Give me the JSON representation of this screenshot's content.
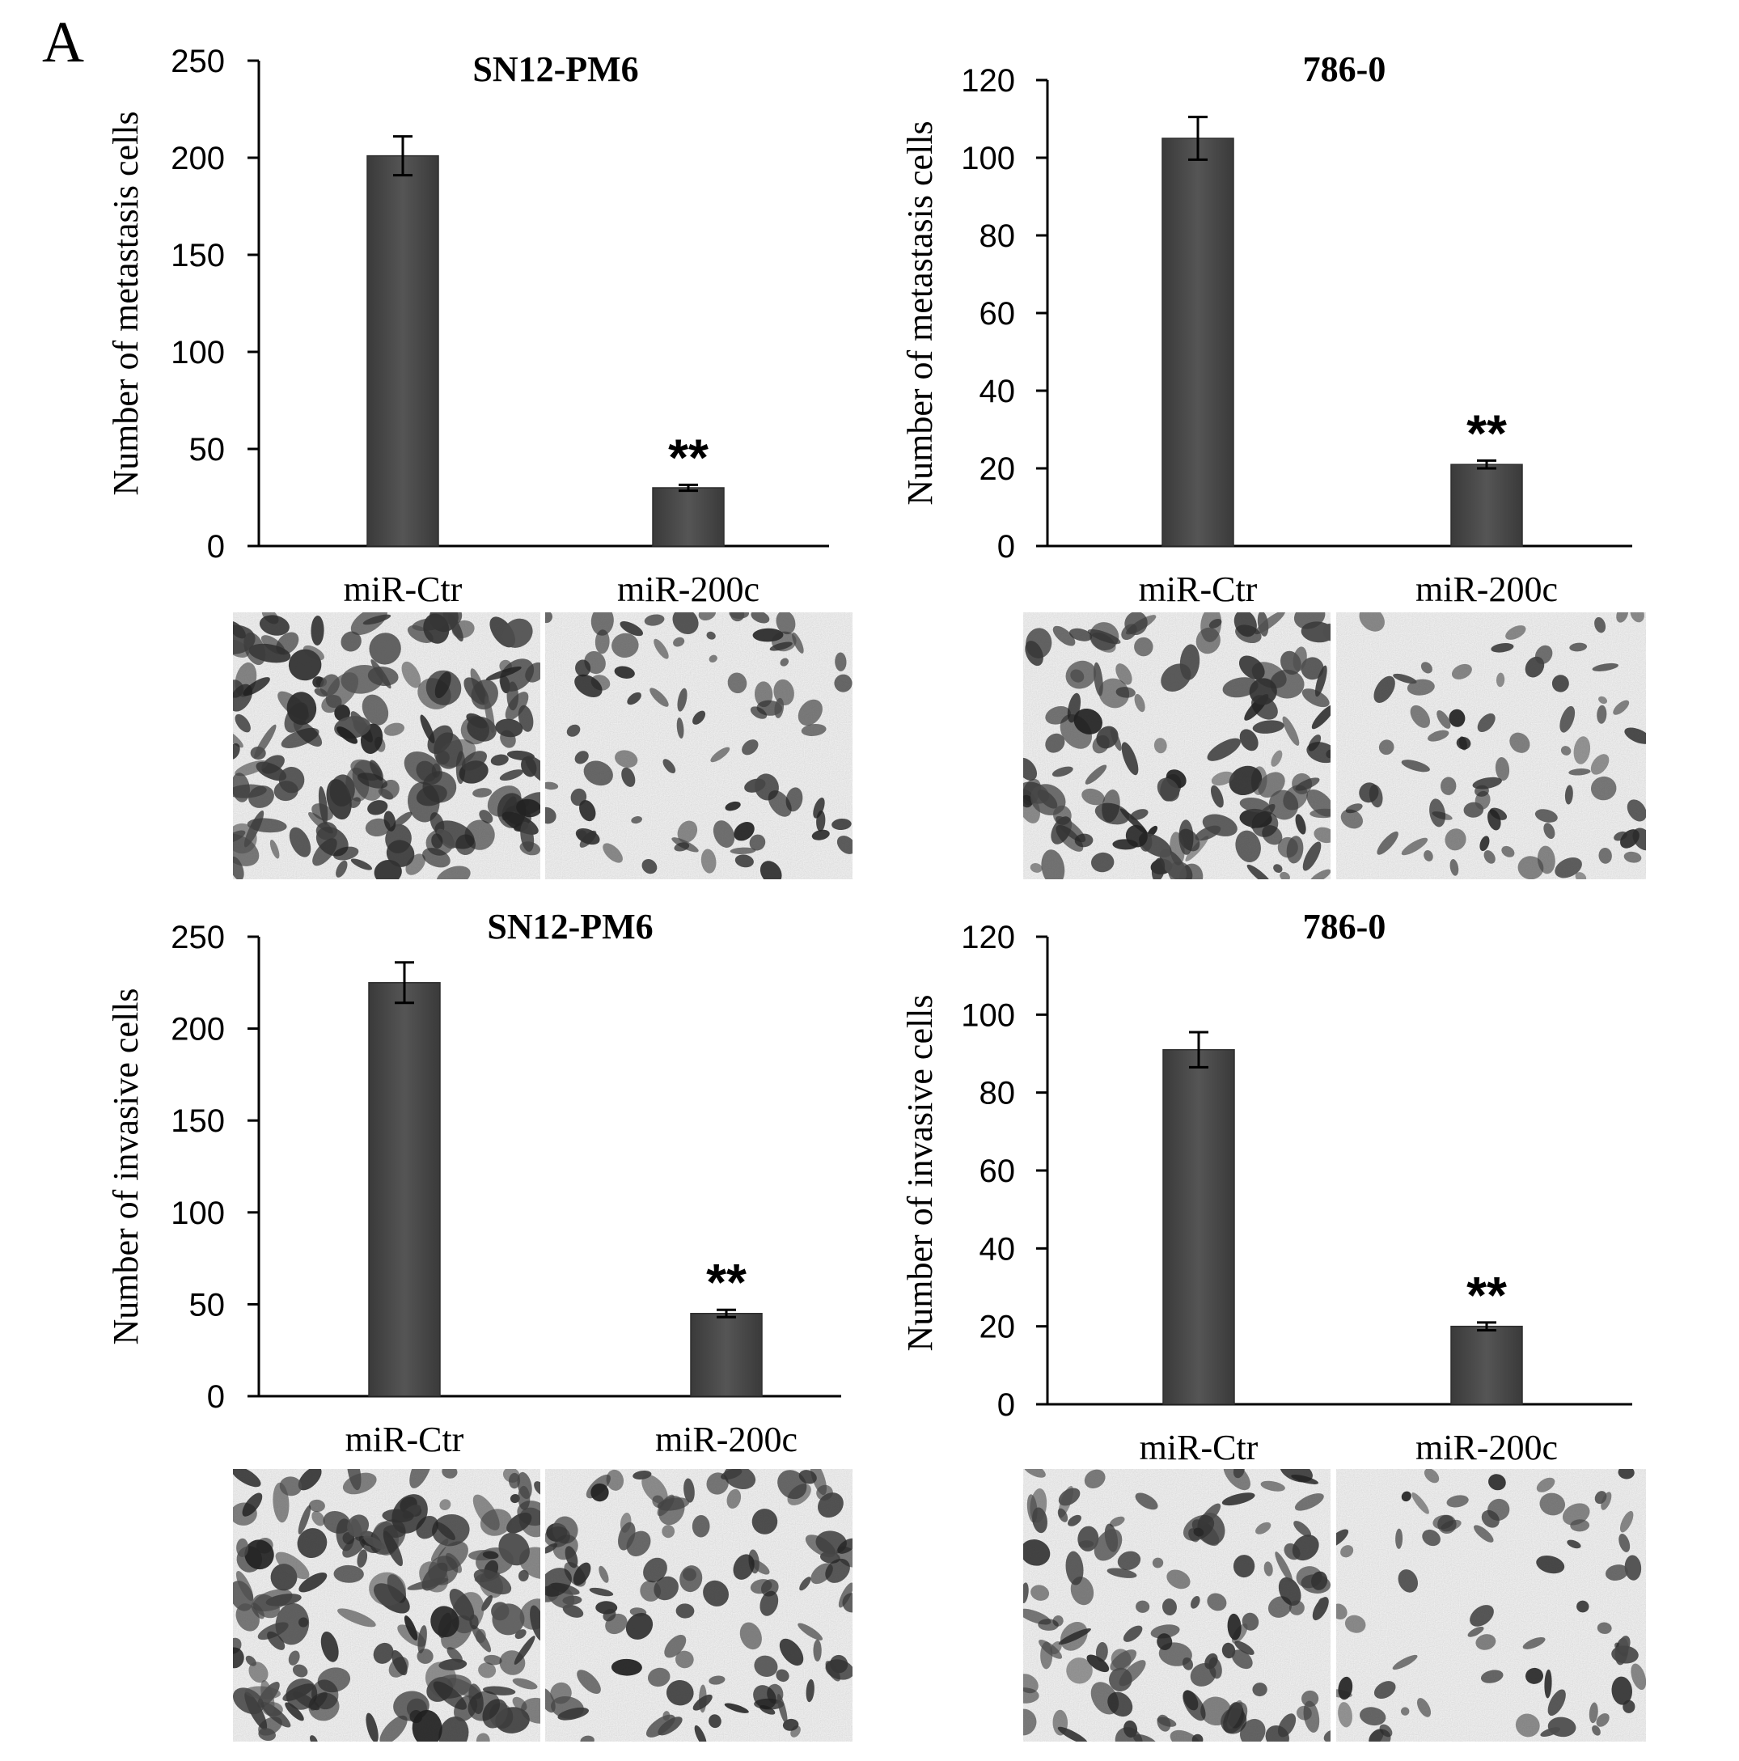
{
  "panel_label": "A",
  "colors": {
    "bar": "#4a4a4a",
    "axis": "#000000",
    "text": "#000000"
  },
  "chart_data": [
    {
      "type": "bar",
      "title": "SN12-PM6",
      "ylabel": "Number of metastasis cells",
      "xlabel": "",
      "categories": [
        "miR-Ctr",
        "miR-200c"
      ],
      "values": [
        201,
        30
      ],
      "errors": [
        10,
        1.5
      ],
      "annotations": [
        "",
        "**"
      ],
      "ylim": [
        0,
        250
      ],
      "yticks": [
        0,
        50,
        100,
        150,
        200,
        250
      ],
      "grid": false
    },
    {
      "type": "bar",
      "title": "786-0",
      "ylabel": "Number of metastasis cells",
      "xlabel": "",
      "categories": [
        "miR-Ctr",
        "miR-200c"
      ],
      "values": [
        105,
        21
      ],
      "errors": [
        5.5,
        1
      ],
      "annotations": [
        "",
        "**"
      ],
      "ylim": [
        0,
        120
      ],
      "yticks": [
        0,
        20,
        40,
        60,
        80,
        100,
        120
      ],
      "grid": false
    },
    {
      "type": "bar",
      "title": "SN12-PM6",
      "ylabel": "Number of invasive cells",
      "xlabel": "",
      "categories": [
        "miR-Ctr",
        "miR-200c"
      ],
      "values": [
        225,
        45
      ],
      "errors": [
        11,
        2
      ],
      "annotations": [
        "",
        "**"
      ],
      "ylim": [
        0,
        250
      ],
      "yticks": [
        0,
        50,
        100,
        150,
        200,
        250
      ],
      "grid": false
    },
    {
      "type": "bar",
      "title": "786-0",
      "ylabel": "Number of invasive cells",
      "xlabel": "",
      "categories": [
        "miR-Ctr",
        "miR-200c"
      ],
      "values": [
        91,
        20
      ],
      "errors": [
        4.5,
        1
      ],
      "annotations": [
        "",
        "**"
      ],
      "ylim": [
        0,
        120
      ],
      "yticks": [
        0,
        20,
        40,
        60,
        80,
        100,
        120
      ],
      "grid": false
    }
  ],
  "micrographs": [
    {
      "name": "micrograph-sn12-metastasis-mir-ctr",
      "density": 0.95
    },
    {
      "name": "micrograph-sn12-metastasis-mir-200c",
      "density": 0.35
    },
    {
      "name": "micrograph-786-metastasis-mir-ctr",
      "density": 0.7
    },
    {
      "name": "micrograph-786-metastasis-mir-200c",
      "density": 0.3
    },
    {
      "name": "micrograph-sn12-invasion-mir-ctr",
      "density": 0.95
    },
    {
      "name": "micrograph-sn12-invasion-mir-200c",
      "density": 0.55
    },
    {
      "name": "micrograph-786-invasion-mir-ctr",
      "density": 0.6
    },
    {
      "name": "micrograph-786-invasion-mir-200c",
      "density": 0.25
    }
  ]
}
